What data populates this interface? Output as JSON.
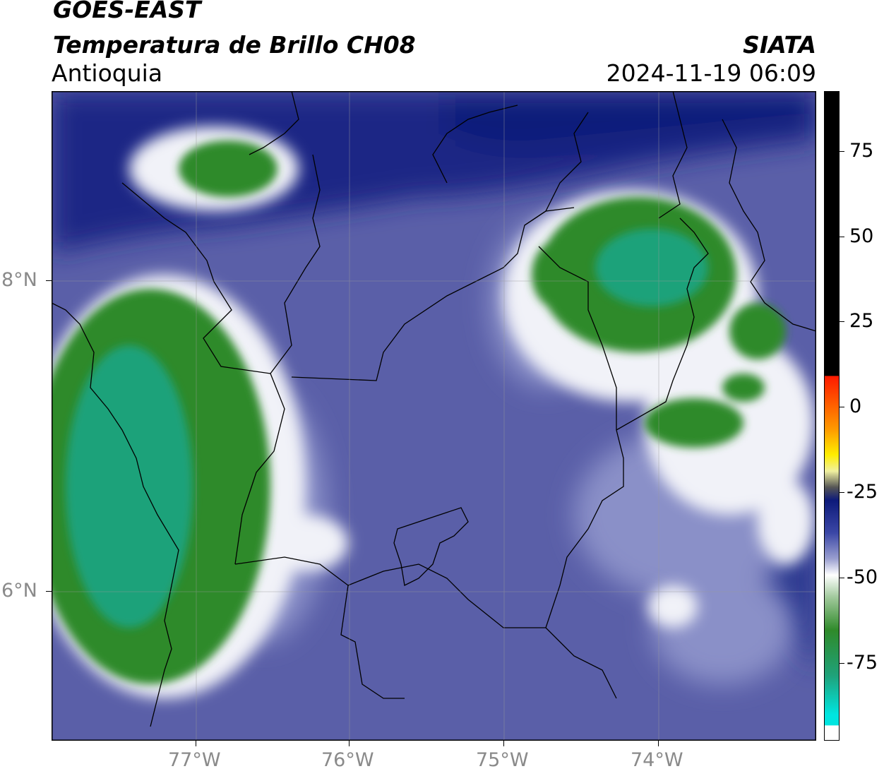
{
  "header": {
    "satellite": "GOES-EAST",
    "product": "Temperatura de Brillo CH08",
    "region": "Antioquia",
    "org": "SIATA",
    "timestamp": "2024-11-19 06:09"
  },
  "axes": {
    "x_labels": [
      "77°W",
      "76°W",
      "75°W",
      "74°W"
    ],
    "y_labels": [
      "8°N",
      "6°N"
    ]
  },
  "colorbar": {
    "labels": [
      "75",
      "50",
      "25",
      "0",
      "-25",
      "-50",
      "-75"
    ],
    "colors": {
      "deep_blue": "#0d1a7a",
      "blue": "#3b47a6",
      "light_blue": "#6f77bb",
      "white": "#ffffff",
      "green": "#2f8a2a",
      "teal": "#1fbf93",
      "cyan": "#00e5e0",
      "black": "#000000",
      "red": "#ff1a00",
      "yellow": "#ffee00"
    }
  }
}
